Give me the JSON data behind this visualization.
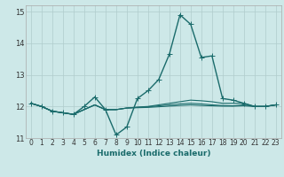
{
  "xlabel": "Humidex (Indice chaleur)",
  "xlim": [
    -0.5,
    23.5
  ],
  "ylim": [
    11,
    15.2
  ],
  "yticks": [
    11,
    12,
    13,
    14,
    15
  ],
  "xticks": [
    0,
    1,
    2,
    3,
    4,
    5,
    6,
    7,
    8,
    9,
    10,
    11,
    12,
    13,
    14,
    15,
    16,
    17,
    18,
    19,
    20,
    21,
    22,
    23
  ],
  "background_color": "#cde8e8",
  "grid_color": "#b0cccc",
  "line_color": "#1a6b6b",
  "lines": [
    [
      12.1,
      12.0,
      11.85,
      11.8,
      11.75,
      12.0,
      12.3,
      11.9,
      11.1,
      11.35,
      12.25,
      12.5,
      12.85,
      13.65,
      14.9,
      14.6,
      13.55,
      13.6,
      12.25,
      12.2,
      12.1,
      12.0,
      12.0,
      12.05
    ],
    [
      12.1,
      12.0,
      11.85,
      11.8,
      11.75,
      11.9,
      12.05,
      11.9,
      11.9,
      11.95,
      11.98,
      12.0,
      12.05,
      12.1,
      12.15,
      12.2,
      12.18,
      12.15,
      12.1,
      12.1,
      12.1,
      12.0,
      12.0,
      12.05
    ],
    [
      12.1,
      12.0,
      11.85,
      11.8,
      11.75,
      11.9,
      12.05,
      11.9,
      11.9,
      11.95,
      11.97,
      11.99,
      12.02,
      12.05,
      12.08,
      12.1,
      12.08,
      12.05,
      12.03,
      12.02,
      12.05,
      12.0,
      12.0,
      12.05
    ],
    [
      12.1,
      12.0,
      11.85,
      11.8,
      11.75,
      11.9,
      12.05,
      11.9,
      11.9,
      11.95,
      11.96,
      11.97,
      11.99,
      12.01,
      12.03,
      12.05,
      12.03,
      12.02,
      12.01,
      12.01,
      12.02,
      12.0,
      12.0,
      12.05
    ]
  ],
  "has_markers": [
    true,
    false,
    false,
    false
  ],
  "marker": "+",
  "marker_size": 4,
  "linewidths": [
    1.0,
    0.8,
    0.8,
    0.8
  ],
  "xlabel_fontsize": 6.5,
  "xlabel_color": "#1a6b6b",
  "tick_fontsize": 5.5,
  "tick_color": "#333333"
}
